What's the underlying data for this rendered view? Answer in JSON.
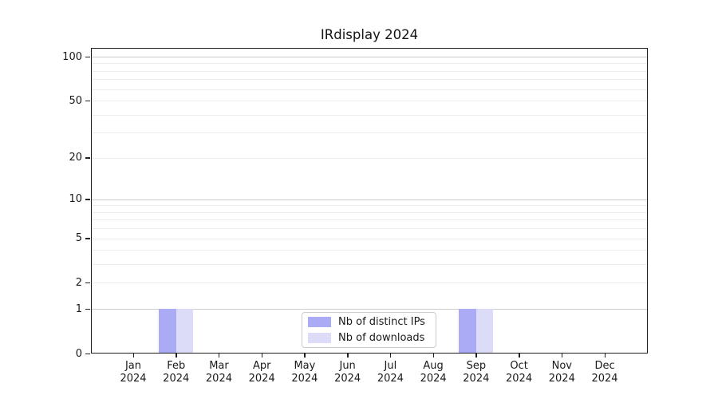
{
  "figure": {
    "title": "IRdisplay 2024",
    "background_color": "#ffffff",
    "spine_color": "#1c1c1c"
  },
  "chart_data": {
    "type": "bar",
    "title": "IRdisplay 2024",
    "xlabel": "",
    "ylabel": "",
    "categories": [
      "Jan 2024",
      "Feb 2024",
      "Mar 2024",
      "Apr 2024",
      "May 2024",
      "Jun 2024",
      "Jul 2024",
      "Aug 2024",
      "Sep 2024",
      "Oct 2024",
      "Nov 2024",
      "Dec 2024"
    ],
    "series": [
      {
        "name": "Nb of distinct IPs",
        "color": "#aaaaf5",
        "values": [
          0,
          1,
          0,
          0,
          0,
          0,
          0,
          0,
          1,
          0,
          0,
          0
        ]
      },
      {
        "name": "Nb of downloads",
        "color": "#dcdcf8",
        "values": [
          0,
          1,
          0,
          0,
          0,
          0,
          0,
          0,
          1,
          0,
          0,
          0
        ]
      }
    ],
    "yscale": "log1p",
    "ylim": [
      0,
      113
    ],
    "y_tick_labels": [
      0,
      1,
      2,
      5,
      10,
      20,
      50,
      100
    ],
    "gridlines_decade": [
      1,
      10,
      100
    ],
    "gridlines_minor": [
      2,
      3,
      4,
      5,
      6,
      7,
      8,
      9,
      20,
      30,
      40,
      50,
      60,
      70,
      80,
      90
    ],
    "grid": "horizontal-only",
    "legend_position": "lower-center-inside",
    "grid_minor_color": "#ececec",
    "grid_decade_color": "#cccccc"
  }
}
